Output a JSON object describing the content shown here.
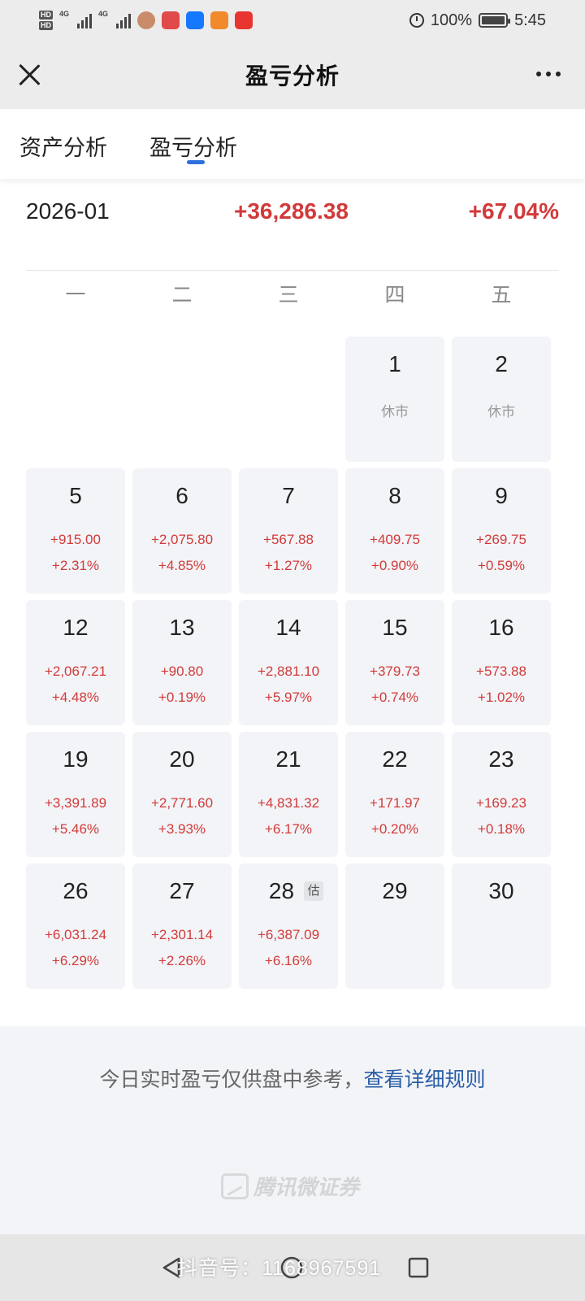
{
  "status_bar": {
    "hd1": "HD",
    "hd2": "HD",
    "net1": "4G",
    "net2": "4G",
    "battery": "100%",
    "time": "5:45"
  },
  "nav": {
    "title": "盈亏分析",
    "close_icon": "close-icon",
    "more_icon": "more-icon"
  },
  "tabs": [
    {
      "label": "资产分析",
      "active": false
    },
    {
      "label": "盈亏分析",
      "active": true
    }
  ],
  "summary": {
    "month": "2026-01",
    "profit": "+36,286.38",
    "rate": "+67.04%"
  },
  "weekdays": [
    "一",
    "二",
    "三",
    "四",
    "五"
  ],
  "calendar": {
    "weeks": [
      [
        null,
        null,
        null,
        {
          "day": "1",
          "rest": "休市"
        },
        {
          "day": "2",
          "rest": "休市"
        }
      ],
      [
        {
          "day": "5",
          "profit": "+915.00",
          "rate": "+2.31%"
        },
        {
          "day": "6",
          "profit": "+2,075.80",
          "rate": "+4.85%"
        },
        {
          "day": "7",
          "profit": "+567.88",
          "rate": "+1.27%"
        },
        {
          "day": "8",
          "profit": "+409.75",
          "rate": "+0.90%"
        },
        {
          "day": "9",
          "profit": "+269.75",
          "rate": "+0.59%"
        }
      ],
      [
        {
          "day": "12",
          "profit": "+2,067.21",
          "rate": "+4.48%"
        },
        {
          "day": "13",
          "profit": "+90.80",
          "rate": "+0.19%"
        },
        {
          "day": "14",
          "profit": "+2,881.10",
          "rate": "+5.97%"
        },
        {
          "day": "15",
          "profit": "+379.73",
          "rate": "+0.74%"
        },
        {
          "day": "16",
          "profit": "+573.88",
          "rate": "+1.02%"
        }
      ],
      [
        {
          "day": "19",
          "profit": "+3,391.89",
          "rate": "+5.46%"
        },
        {
          "day": "20",
          "profit": "+2,771.60",
          "rate": "+3.93%"
        },
        {
          "day": "21",
          "profit": "+4,831.32",
          "rate": "+6.17%"
        },
        {
          "day": "22",
          "profit": "+171.97",
          "rate": "+0.20%"
        },
        {
          "day": "23",
          "profit": "+169.23",
          "rate": "+0.18%"
        }
      ],
      [
        {
          "day": "26",
          "profit": "+6,031.24",
          "rate": "+6.29%"
        },
        {
          "day": "27",
          "profit": "+2,301.14",
          "rate": "+2.26%"
        },
        {
          "day": "28",
          "profit": "+6,387.09",
          "rate": "+6.16%",
          "badge": "估"
        },
        {
          "day": "29"
        },
        {
          "day": "30"
        }
      ]
    ]
  },
  "footer": {
    "note": "今日实时盈亏仅供盘中参考，",
    "link": "查看详细规则",
    "brand": "腾讯微证券"
  },
  "watermark": "抖音号：1168967591",
  "colors": {
    "profit_red": "#d23a3a",
    "accent_blue": "#2f6fdc",
    "link_blue": "#2a5ea8",
    "cell_bg": "#f3f4f7"
  }
}
